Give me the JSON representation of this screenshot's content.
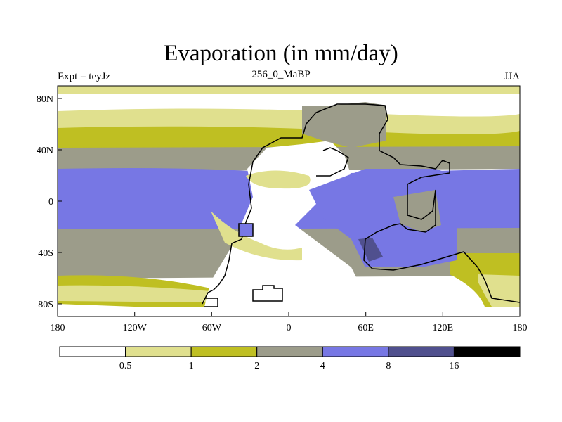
{
  "title": "Evaporation (in mm/day)",
  "left_label": "Expt = teyJz",
  "center_label": "256_0_MaBP",
  "right_label": "JJA",
  "lat_ticks": [
    "80N",
    "40N",
    "0",
    "40S",
    "80S"
  ],
  "lon_ticks": [
    "180",
    "120W",
    "60W",
    "0",
    "60E",
    "120E",
    "180"
  ],
  "colorbar": {
    "colors": [
      "#ffffff",
      "#e0e08e",
      "#bfbf22",
      "#9c9c8a",
      "#7777e4",
      "#50508e",
      "#000000"
    ],
    "labels": [
      "0.5",
      "1",
      "2",
      "4",
      "8",
      "16"
    ]
  }
}
